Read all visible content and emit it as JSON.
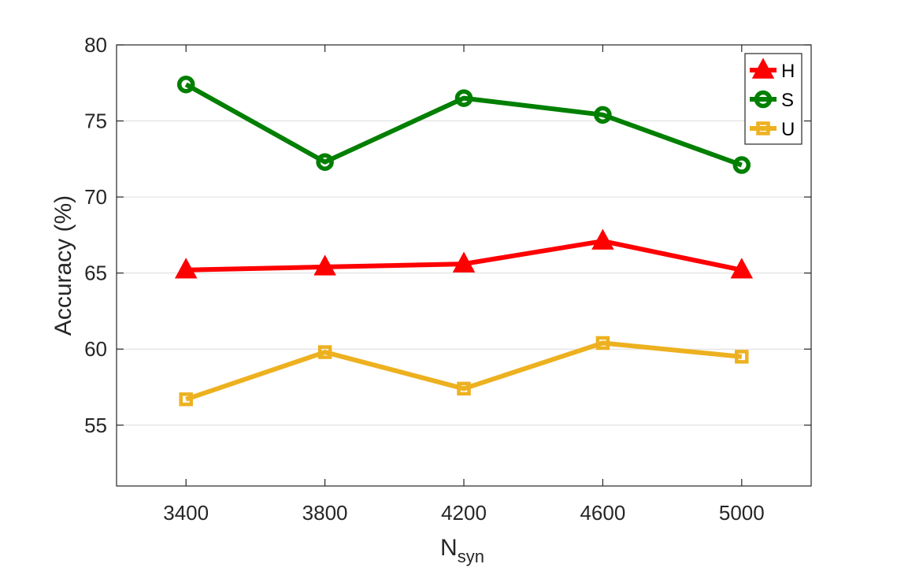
{
  "chart_data": {
    "type": "line",
    "x": [
      3400,
      3800,
      4200,
      4600,
      5000
    ],
    "xticks": [
      "3400",
      "3800",
      "4200",
      "4600",
      "5000"
    ],
    "xlim": [
      3200,
      5200
    ],
    "ylim": [
      51,
      80
    ],
    "yticks": [
      "55",
      "60",
      "65",
      "70",
      "75",
      "80"
    ],
    "xlabel_main": "N",
    "xlabel_sub": "syn",
    "ylabel": "Accuracy (%)",
    "grid": "horizontal",
    "legend_position": "top-right",
    "series": [
      {
        "name": "H",
        "color": "#ff0000",
        "marker": "triangle",
        "values": [
          65.2,
          65.4,
          65.6,
          67.1,
          65.2
        ]
      },
      {
        "name": "S",
        "color": "#007f00",
        "marker": "circle",
        "values": [
          77.4,
          72.3,
          76.5,
          75.4,
          72.1
        ]
      },
      {
        "name": "U",
        "color": "#edb120",
        "marker": "square",
        "values": [
          56.7,
          59.8,
          57.4,
          60.4,
          59.5
        ]
      }
    ]
  }
}
